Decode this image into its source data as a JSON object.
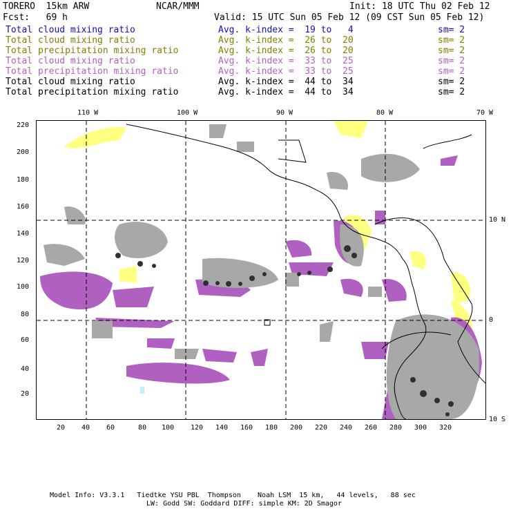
{
  "header": {
    "model": "TORERO  15km ARW",
    "org": "NCAR/MMM",
    "init": "Init: 18 UTC Thu 02 Feb 12",
    "fcst": "Fcst:   69 h",
    "valid": "Valid: 15 UTC Sun 05 Feb 12 (09 CST Sun 05 Feb 12)"
  },
  "legend": [
    {
      "field": "Total cloud mixing ratio",
      "index": "Avg. k-index =  19 to   4",
      "sm": "sm= 2",
      "color": "#1010c0"
    },
    {
      "field": "Total cloud mixing ratio",
      "index": "Avg. k-index =  26 to  20",
      "sm": "sm= 2",
      "color": "#808000"
    },
    {
      "field": "Total precipitation mixing ratio",
      "index": "Avg. k-index =  26 to  20",
      "sm": "sm= 2",
      "color": "#808000"
    },
    {
      "field": "Total cloud mixing ratio",
      "index": "Avg. k-index =  33 to  25",
      "sm": "sm= 2",
      "color": "#b060c0"
    },
    {
      "field": "Total precipitation mixing ratio",
      "index": "Avg. k-index =  33 to  25",
      "sm": "sm= 2",
      "color": "#b060c0"
    },
    {
      "field": "Total cloud mixing ratio",
      "index": "Avg. k-index =  44 to  34",
      "sm": "sm= 2",
      "color": "#000000"
    },
    {
      "field": "Total precipitation mixing ratio",
      "index": "Avg. k-index =  44 to  34",
      "sm": "sm= 2",
      "color": "#000000"
    }
  ],
  "map": {
    "top_labels": [
      "110 W",
      "100 W",
      "90 W",
      "80 W",
      "70 W"
    ],
    "right_labels": [
      "10 N",
      "0",
      "10 S"
    ],
    "x_ticks": [
      "20",
      "40",
      "60",
      "80",
      "100",
      "120",
      "140",
      "160",
      "180",
      "200",
      "220",
      "240",
      "260",
      "280",
      "300",
      "320"
    ],
    "y_ticks": [
      "20",
      "40",
      "60",
      "80",
      "100",
      "120",
      "140",
      "160",
      "180",
      "200",
      "220"
    ],
    "colors": {
      "gray": "#a8a8a8",
      "purple": "#b060c0",
      "yellow": "#ffff80",
      "dark": "#303030",
      "cyan": "#c0f0f8"
    }
  },
  "footer": {
    "line1": "Model Info: V3.3.1   Tiedtke YSU PBL  Thompson    Noah LSM  15 km,   44 levels,   88 sec",
    "line2": "LW: Godd SW: Goddard DIFF: simple KM: 2D Smagor"
  }
}
